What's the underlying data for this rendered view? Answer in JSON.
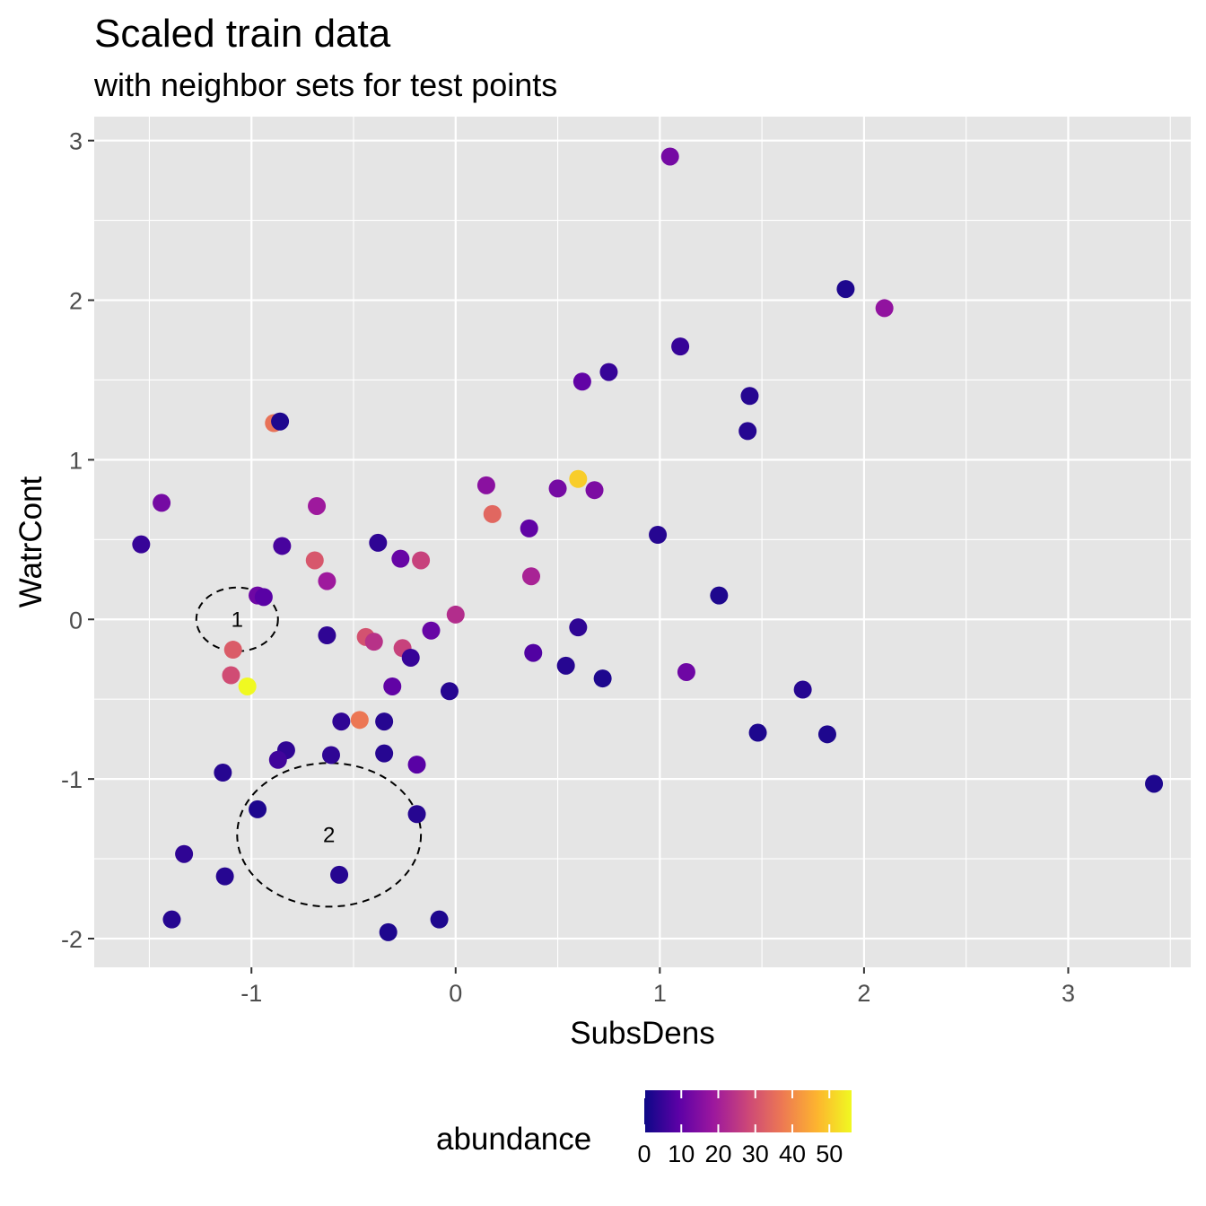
{
  "chart_data": {
    "type": "scatter",
    "title": "Scaled train data",
    "subtitle": "with neighbor sets for test points",
    "xlabel": "SubsDens",
    "ylabel": "WatrCont",
    "xlim": [
      -1.77,
      3.6
    ],
    "ylim": [
      -2.18,
      3.15
    ],
    "x_ticks": [
      -1,
      0,
      1,
      2,
      3
    ],
    "x_tick_labels": [
      "-1",
      "0",
      "1",
      "2",
      "3"
    ],
    "y_ticks": [
      -2,
      -1,
      0,
      1,
      2,
      3
    ],
    "y_tick_labels": [
      "-2",
      "-1",
      "0",
      "1",
      "2",
      "3"
    ],
    "grid": true,
    "panel_background": "#e5e5e5",
    "grid_color": "#ffffff",
    "color_scale": {
      "name": "abundance",
      "palette": "plasma",
      "stops": [
        "#0d0887",
        "#5c01a6",
        "#9c179e",
        "#cc4778",
        "#ed7953",
        "#fdb42f",
        "#f0f921"
      ],
      "range": [
        0,
        56
      ],
      "ticks": [
        0,
        10,
        20,
        30,
        40,
        50
      ],
      "tick_labels": [
        "0",
        "10",
        "20",
        "30",
        "40",
        "50"
      ],
      "legend_position": "bottom"
    },
    "points": [
      {
        "x": 1.05,
        "y": 2.9,
        "v": 13
      },
      {
        "x": 1.91,
        "y": 2.07,
        "v": 2
      },
      {
        "x": 2.1,
        "y": 1.95,
        "v": 17
      },
      {
        "x": 1.1,
        "y": 1.71,
        "v": 5
      },
      {
        "x": 0.75,
        "y": 1.55,
        "v": 5
      },
      {
        "x": 0.62,
        "y": 1.49,
        "v": 10
      },
      {
        "x": 1.44,
        "y": 1.4,
        "v": 3
      },
      {
        "x": 1.43,
        "y": 1.18,
        "v": 3
      },
      {
        "x": -0.89,
        "y": 1.23,
        "v": 36
      },
      {
        "x": -0.86,
        "y": 1.24,
        "v": 2
      },
      {
        "x": -1.44,
        "y": 0.73,
        "v": 13
      },
      {
        "x": -0.68,
        "y": 0.71,
        "v": 19
      },
      {
        "x": -1.54,
        "y": 0.47,
        "v": 5
      },
      {
        "x": -0.85,
        "y": 0.46,
        "v": 7
      },
      {
        "x": -0.69,
        "y": 0.37,
        "v": 31
      },
      {
        "x": -0.63,
        "y": 0.24,
        "v": 19
      },
      {
        "x": -0.38,
        "y": 0.48,
        "v": 4
      },
      {
        "x": -0.27,
        "y": 0.38,
        "v": 11
      },
      {
        "x": -0.17,
        "y": 0.37,
        "v": 27
      },
      {
        "x": 0.15,
        "y": 0.84,
        "v": 16
      },
      {
        "x": 0.18,
        "y": 0.66,
        "v": 34
      },
      {
        "x": 0.36,
        "y": 0.57,
        "v": 10
      },
      {
        "x": 0.5,
        "y": 0.82,
        "v": 13
      },
      {
        "x": 0.6,
        "y": 0.88,
        "v": 50
      },
      {
        "x": 0.68,
        "y": 0.81,
        "v": 14
      },
      {
        "x": 0.37,
        "y": 0.27,
        "v": 21
      },
      {
        "x": -0.97,
        "y": 0.15,
        "v": 12
      },
      {
        "x": -0.94,
        "y": 0.14,
        "v": 9
      },
      {
        "x": 0.0,
        "y": 0.03,
        "v": 23
      },
      {
        "x": 0.99,
        "y": 0.53,
        "v": 3
      },
      {
        "x": 1.29,
        "y": 0.15,
        "v": 2
      },
      {
        "x": -1.09,
        "y": -0.19,
        "v": 32
      },
      {
        "x": -0.63,
        "y": -0.1,
        "v": 4
      },
      {
        "x": -0.44,
        "y": -0.11,
        "v": 30
      },
      {
        "x": -0.4,
        "y": -0.14,
        "v": 24
      },
      {
        "x": -0.26,
        "y": -0.18,
        "v": 27
      },
      {
        "x": -0.12,
        "y": -0.07,
        "v": 11
      },
      {
        "x": -0.22,
        "y": -0.24,
        "v": 5
      },
      {
        "x": 0.6,
        "y": -0.05,
        "v": 4
      },
      {
        "x": 0.38,
        "y": -0.21,
        "v": 8
      },
      {
        "x": 0.54,
        "y": -0.29,
        "v": 3
      },
      {
        "x": 0.72,
        "y": -0.37,
        "v": 2
      },
      {
        "x": 1.13,
        "y": -0.33,
        "v": 12
      },
      {
        "x": -1.1,
        "y": -0.35,
        "v": 29
      },
      {
        "x": -1.02,
        "y": -0.42,
        "v": 56
      },
      {
        "x": -0.31,
        "y": -0.42,
        "v": 10
      },
      {
        "x": -0.03,
        "y": -0.45,
        "v": 3
      },
      {
        "x": 1.7,
        "y": -0.44,
        "v": 3
      },
      {
        "x": -0.56,
        "y": -0.64,
        "v": 4
      },
      {
        "x": -0.47,
        "y": -0.63,
        "v": 37
      },
      {
        "x": -0.35,
        "y": -0.64,
        "v": 3
      },
      {
        "x": 1.48,
        "y": -0.71,
        "v": 2
      },
      {
        "x": 1.82,
        "y": -0.72,
        "v": 2
      },
      {
        "x": -0.83,
        "y": -0.82,
        "v": 4
      },
      {
        "x": -0.87,
        "y": -0.88,
        "v": 6
      },
      {
        "x": -0.61,
        "y": -0.85,
        "v": 4
      },
      {
        "x": -0.35,
        "y": -0.84,
        "v": 3
      },
      {
        "x": -0.19,
        "y": -0.91,
        "v": 9
      },
      {
        "x": -1.14,
        "y": -0.96,
        "v": 3
      },
      {
        "x": 3.42,
        "y": -1.03,
        "v": 2
      },
      {
        "x": -0.97,
        "y": -1.19,
        "v": 2
      },
      {
        "x": -0.19,
        "y": -1.22,
        "v": 3
      },
      {
        "x": -1.33,
        "y": -1.47,
        "v": 4
      },
      {
        "x": -1.13,
        "y": -1.61,
        "v": 3
      },
      {
        "x": -0.57,
        "y": -1.6,
        "v": 3
      },
      {
        "x": -1.39,
        "y": -1.88,
        "v": 3
      },
      {
        "x": -0.33,
        "y": -1.96,
        "v": 2
      },
      {
        "x": -0.08,
        "y": -1.88,
        "v": 2
      }
    ],
    "annotations": [
      {
        "label": "1",
        "x": -1.07,
        "y": 0.0,
        "rx": 0.2,
        "ry": 0.2
      },
      {
        "label": "2",
        "x": -0.62,
        "y": -1.35,
        "rx": 0.45,
        "ry": 0.45
      }
    ]
  }
}
